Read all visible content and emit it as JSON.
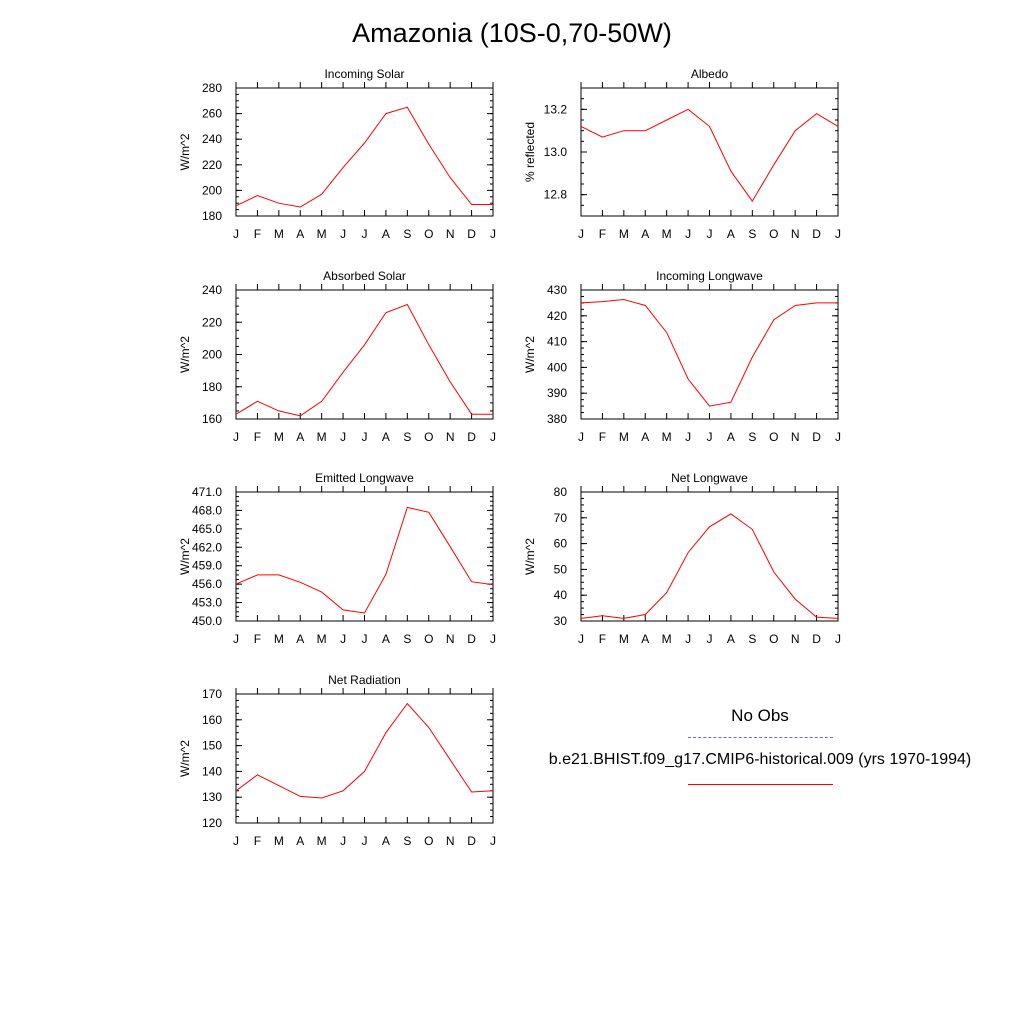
{
  "title": "Amazonia (10S-0,70-50W)",
  "colors": {
    "model": "#ff0000",
    "obs": "#6666ff",
    "axis": "#000000"
  },
  "legend": {
    "obs_label": "No Obs",
    "model_label": "b.e21.BHIST.f09_g17.CMIP6-historical.009 (yrs 1970-1994)"
  },
  "chart_data": [
    {
      "type": "line",
      "title": "Incoming Solar",
      "ylabel": "W/m^2",
      "categories": [
        "J",
        "F",
        "M",
        "A",
        "M",
        "J",
        "J",
        "A",
        "S",
        "O",
        "N",
        "D",
        "J"
      ],
      "ylim": [
        180,
        280
      ],
      "yticks": [
        "180",
        "200",
        "220",
        "240",
        "260",
        "280"
      ],
      "series": [
        {
          "name": "b.e21.BHIST.f09_g17.CMIP6-historical.009 (yrs 1970-1994)",
          "values": [
            188,
            196,
            190,
            187,
            197,
            218,
            237,
            260,
            265,
            236,
            210,
            189,
            189
          ]
        }
      ]
    },
    {
      "type": "line",
      "title": "Albedo",
      "ylabel": "% reflected",
      "categories": [
        "J",
        "F",
        "M",
        "A",
        "M",
        "J",
        "J",
        "A",
        "S",
        "O",
        "N",
        "D",
        "J"
      ],
      "ylim": [
        12.7,
        13.3
      ],
      "yticks": [
        "12.8",
        "13.0",
        "13.2"
      ],
      "series": [
        {
          "name": "b.e21.BHIST.f09_g17.CMIP6-historical.009 (yrs 1970-1994)",
          "values": [
            13.12,
            13.07,
            13.1,
            13.1,
            13.15,
            13.2,
            13.12,
            12.91,
            12.77,
            12.94,
            13.1,
            13.18,
            13.12
          ]
        }
      ]
    },
    {
      "type": "line",
      "title": "Absorbed Solar",
      "ylabel": "W/m^2",
      "categories": [
        "J",
        "F",
        "M",
        "A",
        "M",
        "J",
        "J",
        "A",
        "S",
        "O",
        "N",
        "D",
        "J"
      ],
      "ylim": [
        160,
        240
      ],
      "yticks": [
        "160",
        "180",
        "200",
        "220",
        "240"
      ],
      "series": [
        {
          "name": "b.e21.BHIST.f09_g17.CMIP6-historical.009 (yrs 1970-1994)",
          "values": [
            163,
            171,
            165,
            162,
            171,
            189,
            206,
            226,
            231,
            206,
            183,
            163,
            163
          ]
        }
      ]
    },
    {
      "type": "line",
      "title": "Incoming Longwave",
      "ylabel": "W/m^2",
      "categories": [
        "J",
        "F",
        "M",
        "A",
        "M",
        "J",
        "J",
        "A",
        "S",
        "O",
        "N",
        "D",
        "J"
      ],
      "ylim": [
        380,
        430
      ],
      "yticks": [
        "380",
        "390",
        "400",
        "410",
        "420",
        "430"
      ],
      "series": [
        {
          "name": "b.e21.BHIST.f09_g17.CMIP6-historical.009 (yrs 1970-1994)",
          "values": [
            425,
            425.5,
            426.3,
            424,
            413.5,
            395.5,
            385,
            386.5,
            404,
            418.5,
            424,
            425,
            425
          ]
        }
      ]
    },
    {
      "type": "line",
      "title": "Emitted Longwave",
      "ylabel": "W/m^2",
      "categories": [
        "J",
        "F",
        "M",
        "A",
        "M",
        "J",
        "J",
        "A",
        "S",
        "O",
        "N",
        "D",
        "J"
      ],
      "ylim": [
        450.0,
        471.0
      ],
      "yticks": [
        "450.0",
        "453.0",
        "456.0",
        "459.0",
        "462.0",
        "465.0",
        "468.0",
        "471.0"
      ],
      "series": [
        {
          "name": "b.e21.BHIST.f09_g17.CMIP6-historical.009 (yrs 1970-1994)",
          "values": [
            456.0,
            457.5,
            457.5,
            456.3,
            454.7,
            451.8,
            451.3,
            457.6,
            468.5,
            467.7,
            462.1,
            456.4,
            455.9
          ]
        }
      ]
    },
    {
      "type": "line",
      "title": "Net Longwave",
      "ylabel": "W/m^2",
      "categories": [
        "J",
        "F",
        "M",
        "A",
        "M",
        "J",
        "J",
        "A",
        "S",
        "O",
        "N",
        "D",
        "J"
      ],
      "ylim": [
        30,
        80
      ],
      "yticks": [
        "30",
        "40",
        "50",
        "60",
        "70",
        "80"
      ],
      "series": [
        {
          "name": "b.e21.BHIST.f09_g17.CMIP6-historical.009 (yrs 1970-1994)",
          "values": [
            31,
            32,
            31,
            32.5,
            41,
            56.5,
            66.5,
            71.5,
            65.5,
            49,
            38.5,
            31.5,
            31
          ]
        }
      ]
    },
    {
      "type": "line",
      "title": "Net Radiation",
      "ylabel": "W/m^2",
      "categories": [
        "J",
        "F",
        "M",
        "A",
        "M",
        "J",
        "J",
        "A",
        "S",
        "O",
        "N",
        "D",
        "J"
      ],
      "ylim": [
        120,
        170
      ],
      "yticks": [
        "120",
        "130",
        "140",
        "150",
        "160",
        "170"
      ],
      "series": [
        {
          "name": "b.e21.BHIST.f09_g17.CMIP6-historical.009 (yrs 1970-1994)",
          "values": [
            132.5,
            138.7,
            134.5,
            130.3,
            129.7,
            132.5,
            140,
            155,
            166.3,
            157,
            144.5,
            132,
            132.5
          ]
        }
      ]
    }
  ]
}
